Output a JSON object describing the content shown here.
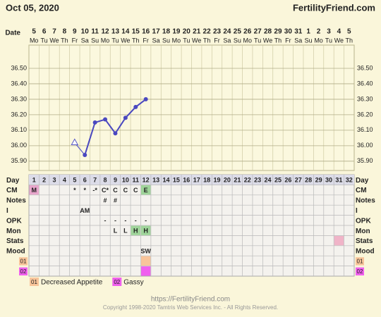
{
  "header": {
    "date": "Oct 05, 2020",
    "site": "FertilityFriend.com"
  },
  "chart_data": {
    "type": "line",
    "x_label": "Date",
    "categories": [
      "5",
      "6",
      "7",
      "8",
      "9",
      "10",
      "11",
      "12",
      "13",
      "14",
      "15",
      "16",
      "17",
      "18",
      "19",
      "20",
      "21",
      "22",
      "23",
      "24",
      "25",
      "26",
      "27",
      "28",
      "29",
      "30",
      "31",
      "1",
      "2",
      "3",
      "4",
      "5"
    ],
    "weekdays": [
      "Mo",
      "Tu",
      "We",
      "Th",
      "Fr",
      "Sa",
      "Su",
      "Mo",
      "Tu",
      "We",
      "Th",
      "Fr",
      "Sa",
      "Su",
      "Mo",
      "Tu",
      "We",
      "Th",
      "Fr",
      "Sa",
      "Su",
      "Mo",
      "Tu",
      "We",
      "Th",
      "Fr",
      "Sa",
      "Su",
      "Mo",
      "Tu",
      "We",
      "Th"
    ],
    "ylim": [
      35.84,
      36.65
    ],
    "yticks": [
      {
        "value": 35.9,
        "label": "35.90"
      },
      {
        "value": 36.0,
        "label": "36.00"
      },
      {
        "value": 36.1,
        "label": "36.10"
      },
      {
        "value": 36.2,
        "label": "36.20"
      },
      {
        "value": 36.3,
        "label": "36.30"
      },
      {
        "value": 36.4,
        "label": "36.40"
      },
      {
        "value": 36.5,
        "label": "36.50"
      }
    ],
    "grid": true,
    "series": [
      {
        "color": "#5a5ac8",
        "marker": "triangle",
        "values": [
          null,
          null,
          null,
          null,
          36.02,
          null,
          null,
          null,
          null,
          null,
          null,
          null,
          null,
          null,
          null,
          null,
          null,
          null,
          null,
          null,
          null,
          null,
          null,
          null,
          null,
          null,
          null,
          null,
          null,
          null,
          null,
          null
        ]
      },
      {
        "color": "#4a48c0",
        "marker": "circle",
        "values": [
          null,
          null,
          null,
          null,
          null,
          35.94,
          36.15,
          36.17,
          36.08,
          36.18,
          36.25,
          36.3,
          null,
          null,
          null,
          null,
          null,
          null,
          null,
          null,
          null,
          null,
          null,
          null,
          null,
          null,
          null,
          null,
          null,
          null,
          null,
          null
        ]
      }
    ]
  },
  "table": {
    "rows": [
      {
        "label": "Day",
        "cells": [
          "1",
          "2",
          "3",
          "4",
          "5",
          "6",
          "7",
          "8",
          "9",
          "10",
          "11",
          "12",
          "13",
          "14",
          "15",
          "16",
          "17",
          "18",
          "19",
          "20",
          "21",
          "22",
          "23",
          "24",
          "25",
          "26",
          "27",
          "28",
          "29",
          "30",
          "31",
          "32"
        ]
      },
      {
        "label": "CM",
        "cells": [
          {
            "text": "M",
            "color": "#e8a6cc"
          },
          null,
          null,
          null,
          "*",
          "*",
          "-*",
          "C*",
          "C",
          "C",
          "C",
          {
            "text": "E",
            "color": "#9fd49a"
          },
          null,
          null,
          null,
          null,
          null,
          null,
          null,
          null,
          null,
          null,
          null,
          null,
          null,
          null,
          null,
          null,
          null,
          null,
          null,
          null
        ]
      },
      {
        "label": "Notes",
        "cells": [
          null,
          null,
          null,
          null,
          null,
          null,
          null,
          "#",
          "#",
          null,
          null,
          null,
          null,
          null,
          null,
          null,
          null,
          null,
          null,
          null,
          null,
          null,
          null,
          null,
          null,
          null,
          null,
          null,
          null,
          null,
          null,
          null
        ]
      },
      {
        "label": "I",
        "cells": [
          null,
          null,
          null,
          null,
          null,
          "AM",
          null,
          null,
          null,
          null,
          null,
          null,
          null,
          null,
          null,
          null,
          null,
          null,
          null,
          null,
          null,
          null,
          null,
          null,
          null,
          null,
          null,
          null,
          null,
          null,
          null,
          null
        ]
      },
      {
        "label": "OPK",
        "cells": [
          null,
          null,
          null,
          null,
          null,
          null,
          null,
          "-",
          "-",
          "-",
          "-",
          "-",
          null,
          null,
          null,
          null,
          null,
          null,
          null,
          null,
          null,
          null,
          null,
          null,
          null,
          null,
          null,
          null,
          null,
          null,
          null,
          null
        ]
      },
      {
        "label": "Mon",
        "cells": [
          null,
          null,
          null,
          null,
          null,
          null,
          null,
          null,
          "L",
          "L",
          {
            "text": "H",
            "color": "#9fd49a"
          },
          {
            "text": "H",
            "color": "#9fd49a"
          },
          null,
          null,
          null,
          null,
          null,
          null,
          null,
          null,
          null,
          null,
          null,
          null,
          null,
          null,
          null,
          null,
          null,
          null,
          null,
          null
        ]
      },
      {
        "label": "Stats",
        "cells": [
          null,
          null,
          null,
          null,
          null,
          null,
          null,
          null,
          null,
          null,
          null,
          null,
          null,
          null,
          null,
          null,
          null,
          null,
          null,
          null,
          null,
          null,
          null,
          null,
          null,
          null,
          null,
          null,
          null,
          null,
          {
            "color": "#f0b4c8"
          },
          null
        ]
      },
      {
        "label": "Mood",
        "cells": [
          null,
          null,
          null,
          null,
          null,
          null,
          null,
          null,
          null,
          null,
          null,
          "SW",
          null,
          null,
          null,
          null,
          null,
          null,
          null,
          null,
          null,
          null,
          null,
          null,
          null,
          null,
          null,
          null,
          null,
          null,
          null,
          null
        ]
      },
      {
        "label": "01",
        "label_color": "#f8c49a",
        "cells": [
          null,
          null,
          null,
          null,
          null,
          null,
          null,
          null,
          null,
          null,
          null,
          {
            "color": "#f8c49a"
          },
          null,
          null,
          null,
          null,
          null,
          null,
          null,
          null,
          null,
          null,
          null,
          null,
          null,
          null,
          null,
          null,
          null,
          null,
          null,
          null
        ]
      },
      {
        "label": "02",
        "label_color": "#f060ee",
        "cells": [
          null,
          null,
          null,
          null,
          null,
          null,
          null,
          null,
          null,
          null,
          null,
          {
            "color": "#f060ee"
          },
          null,
          null,
          null,
          null,
          null,
          null,
          null,
          null,
          null,
          null,
          null,
          null,
          null,
          null,
          null,
          null,
          null,
          null,
          null,
          null
        ]
      }
    ]
  },
  "legend": [
    {
      "code": "01",
      "text": "Decreased Appetite",
      "color": "#f8c49a"
    },
    {
      "code": "02",
      "text": "Gassy",
      "color": "#f060ee"
    }
  ],
  "footer": {
    "url": "https://FertilityFriend.com",
    "copyright": "Copyright 1998-2020 Tamtris Web Services Inc. - All Rights Reserved."
  }
}
